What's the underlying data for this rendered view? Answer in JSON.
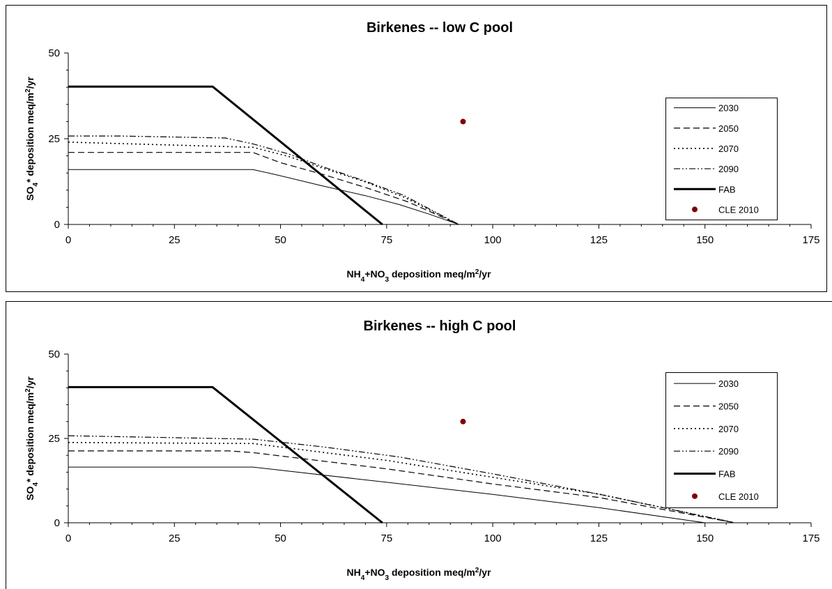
{
  "chart_data": [
    {
      "type": "line",
      "title": "Birkenes -- low C pool",
      "xlabel": "NH₄+NO₃ deposition meq/m²/yr",
      "ylabel": "SO₄* deposition meq/m²/yr",
      "xlim": [
        0,
        175
      ],
      "ylim": [
        0,
        50
      ],
      "xticks": [
        "0",
        "25",
        "50",
        "75",
        "100",
        "125",
        "150",
        "175"
      ],
      "yticks": [
        "0",
        "25",
        "50"
      ],
      "grid": false,
      "legend_position": "right",
      "series": [
        {
          "name": "2030",
          "style": "solid-thin",
          "x": [
            0,
            43.5,
            49,
            60,
            70,
            78,
            85,
            92
          ],
          "y": [
            16,
            16,
            14.5,
            11.2,
            8.4,
            5.8,
            3,
            0
          ]
        },
        {
          "name": "2050",
          "style": "dashed",
          "x": [
            0,
            43.5,
            50,
            60,
            70,
            80,
            92
          ],
          "y": [
            21,
            21,
            18,
            14.6,
            10.8,
            6.6,
            0
          ]
        },
        {
          "name": "2070",
          "style": "dotted",
          "x": [
            0,
            43.5,
            52,
            60,
            70,
            79,
            92
          ],
          "y": [
            24,
            22.5,
            19.8,
            16.4,
            12.4,
            8,
            0
          ]
        },
        {
          "name": "2090",
          "style": "dash-dot-dot",
          "x": [
            0,
            12,
            37,
            43.5,
            52,
            60,
            70,
            79,
            92
          ],
          "y": [
            25.8,
            25.8,
            25.2,
            23.5,
            20.5,
            16.8,
            12.6,
            8.5,
            0
          ]
        },
        {
          "name": "FAB",
          "style": "solid-thick",
          "x": [
            0,
            34,
            74
          ],
          "y": [
            40.2,
            40.2,
            0
          ]
        }
      ],
      "points": [
        {
          "name": "CLE 2010",
          "x": 93,
          "y": 30,
          "color": "#800000"
        }
      ]
    },
    {
      "type": "line",
      "title": "Birkenes -- high C pool",
      "xlabel": "NH₄+NO₃ deposition meq/m²/yr",
      "ylabel": "SO₄* deposition meq/m²/yr",
      "xlim": [
        0,
        175
      ],
      "ylim": [
        0,
        50
      ],
      "xticks": [
        "0",
        "25",
        "50",
        "75",
        "100",
        "125",
        "150",
        "175"
      ],
      "yticks": [
        "0",
        "25",
        "50"
      ],
      "grid": false,
      "legend_position": "right",
      "series": [
        {
          "name": "2030",
          "style": "solid-thin",
          "x": [
            0,
            43.5,
            75,
            100,
            125,
            150
          ],
          "y": [
            16.5,
            16.5,
            12,
            8.4,
            4.5,
            0
          ]
        },
        {
          "name": "2050",
          "style": "dashed",
          "x": [
            0,
            38,
            43.5,
            75,
            100,
            125,
            157
          ],
          "y": [
            21.3,
            21.3,
            20.8,
            16,
            11.5,
            7.5,
            0
          ]
        },
        {
          "name": "2070",
          "style": "dotted",
          "x": [
            0,
            43.5,
            75,
            100,
            125,
            157
          ],
          "y": [
            23.8,
            23.5,
            18.5,
            13.5,
            8.5,
            0
          ]
        },
        {
          "name": "2090",
          "style": "dash-dot-dot",
          "x": [
            0,
            43.5,
            60,
            78,
            100,
            125,
            157
          ],
          "y": [
            25.8,
            24.8,
            22.5,
            19.5,
            14.5,
            8.5,
            0
          ]
        },
        {
          "name": "FAB",
          "style": "solid-thick",
          "x": [
            0,
            34,
            74
          ],
          "y": [
            40.2,
            40.2,
            0
          ]
        }
      ],
      "points": [
        {
          "name": "CLE 2010",
          "x": 93,
          "y": 30,
          "color": "#800000"
        }
      ]
    }
  ]
}
